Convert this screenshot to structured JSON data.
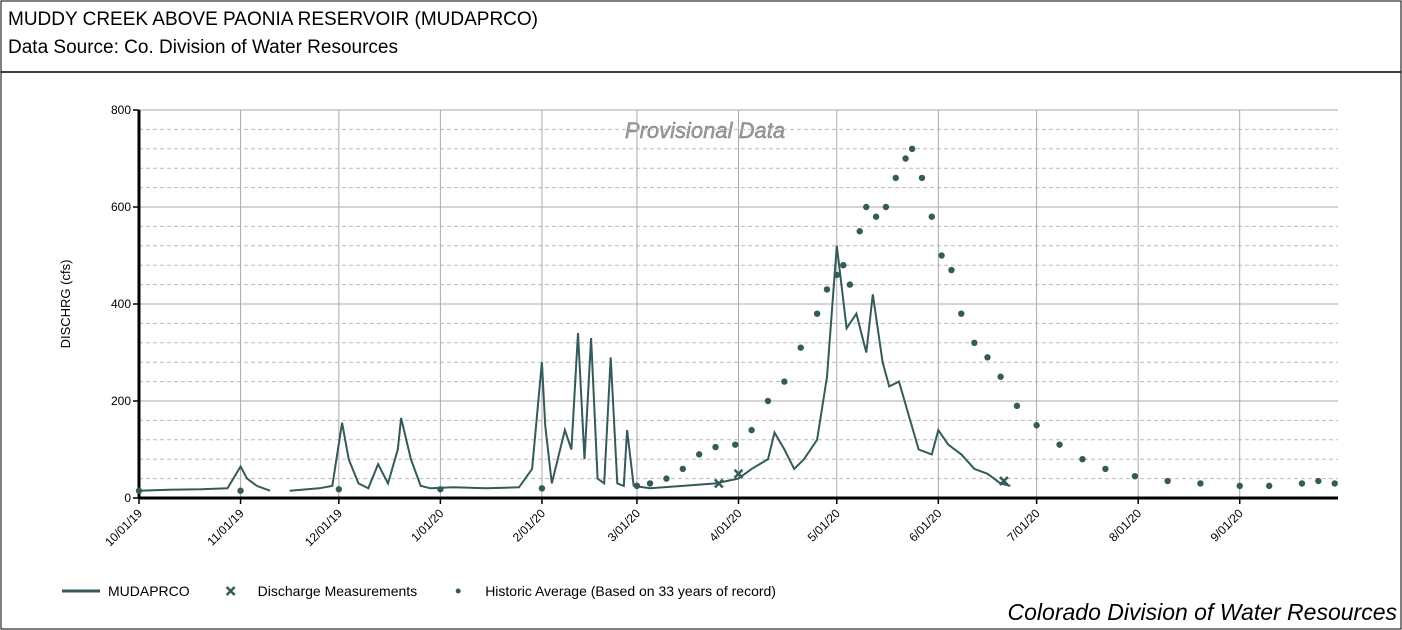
{
  "chart_data": {
    "type": "line",
    "title": "MUDDY CREEK ABOVE PAONIA RESERVOIR (MUDAPRCO)",
    "subtitle": "Data Source: Co. Division of Water Resources",
    "y_label": "DISCHRG (cfs)",
    "annotation": "Provisional Data",
    "footer": "Colorado Division of Water Resources",
    "xlim": [
      "10/01/19",
      "10/01/20"
    ],
    "xticks": [
      "10/01/19",
      "11/01/19",
      "12/01/19",
      "1/01/20",
      "2/01/20",
      "3/01/20",
      "4/01/20",
      "5/01/20",
      "6/01/20",
      "7/01/20",
      "8/01/20",
      "9/01/20"
    ],
    "ylim": [
      0,
      800
    ],
    "yticks": [
      0,
      200,
      400,
      600,
      800
    ],
    "grid": true,
    "series": [
      {
        "name": "MUDAPRCO",
        "color": "#355a5a",
        "marker": "line",
        "x": [
          "10/01/19",
          "10/10/19",
          "10/20/19",
          "10/28/19",
          "11/01/19",
          "11/03/19",
          "11/06/19",
          "11/10/19",
          "11/13/19",
          "11/16/19",
          "11/25/19",
          "11/29/19",
          "12/02/19",
          "12/04/19",
          "12/07/19",
          "12/10/19",
          "12/13/19",
          "12/16/19",
          "12/19/19",
          "12/20/19",
          "12/23/19",
          "12/26/19",
          "12/29/19",
          "1/05/20",
          "1/15/20",
          "1/25/20",
          "1/29/20",
          "2/01/20",
          "2/02/20",
          "2/04/20",
          "2/08/20",
          "2/10/20",
          "2/12/20",
          "2/14/20",
          "2/16/20",
          "2/18/20",
          "2/20/20",
          "2/22/20",
          "2/24/20",
          "2/26/20",
          "2/27/20",
          "2/29/20",
          "3/05/20",
          "3/15/20",
          "3/25/20",
          "4/01/20",
          "4/05/20",
          "4/10/20",
          "4/12/20",
          "4/15/20",
          "4/18/20",
          "4/21/20",
          "4/25/20",
          "4/28/20",
          "4/30/20",
          "5/01/20",
          "5/04/20",
          "5/07/20",
          "5/10/20",
          "5/12/20",
          "5/15/20",
          "5/17/20",
          "5/20/20",
          "5/23/20",
          "5/26/20",
          "5/30/20",
          "6/01/20",
          "6/04/20",
          "6/08/20",
          "6/12/20",
          "6/16/20",
          "6/20/20",
          "6/23/20"
        ],
        "values": [
          15,
          17,
          18,
          20,
          65,
          40,
          25,
          15,
          null,
          15,
          20,
          25,
          155,
          80,
          30,
          20,
          70,
          30,
          100,
          165,
          80,
          25,
          20,
          22,
          20,
          22,
          60,
          280,
          150,
          30,
          140,
          100,
          340,
          80,
          330,
          40,
          30,
          290,
          30,
          25,
          140,
          25,
          20,
          25,
          30,
          40,
          60,
          80,
          135,
          100,
          60,
          80,
          120,
          250,
          430,
          520,
          350,
          380,
          300,
          420,
          280,
          230,
          240,
          170,
          100,
          90,
          140,
          110,
          90,
          60,
          50,
          30,
          25
        ]
      },
      {
        "name": "Discharge Measurements",
        "color": "#355a5a",
        "marker": "x",
        "x": [
          "3/26/20",
          "4/01/20",
          "6/21/20"
        ],
        "values": [
          30,
          50,
          35
        ]
      },
      {
        "name": "Historic Average (Based on 33 years of record)",
        "color": "#355a5a",
        "marker": "dot",
        "x": [
          "10/01/19",
          "11/01/19",
          "12/01/19",
          "1/01/20",
          "2/01/20",
          "3/01/20",
          "3/05/20",
          "3/10/20",
          "3/15/20",
          "3/20/20",
          "3/25/20",
          "3/31/20",
          "4/05/20",
          "4/10/20",
          "4/15/20",
          "4/20/20",
          "4/25/20",
          "4/28/20",
          "5/01/20",
          "5/03/20",
          "5/05/20",
          "5/08/20",
          "5/10/20",
          "5/13/20",
          "5/16/20",
          "5/19/20",
          "5/22/20",
          "5/24/20",
          "5/27/20",
          "5/30/20",
          "6/02/20",
          "6/05/20",
          "6/08/20",
          "6/12/20",
          "6/16/20",
          "6/20/20",
          "6/25/20",
          "7/01/20",
          "7/08/20",
          "7/15/20",
          "7/22/20",
          "7/31/20",
          "8/10/20",
          "8/20/20",
          "9/01/20",
          "9/10/20",
          "9/20/20",
          "9/25/20",
          "9/30/20"
        ],
        "values": [
          15,
          15,
          18,
          18,
          20,
          25,
          30,
          40,
          60,
          90,
          105,
          110,
          140,
          200,
          240,
          310,
          380,
          430,
          460,
          480,
          440,
          550,
          600,
          580,
          600,
          660,
          700,
          720,
          660,
          580,
          500,
          470,
          380,
          320,
          290,
          250,
          190,
          150,
          110,
          80,
          60,
          45,
          35,
          30,
          25,
          25,
          30,
          35,
          30
        ]
      }
    ]
  }
}
